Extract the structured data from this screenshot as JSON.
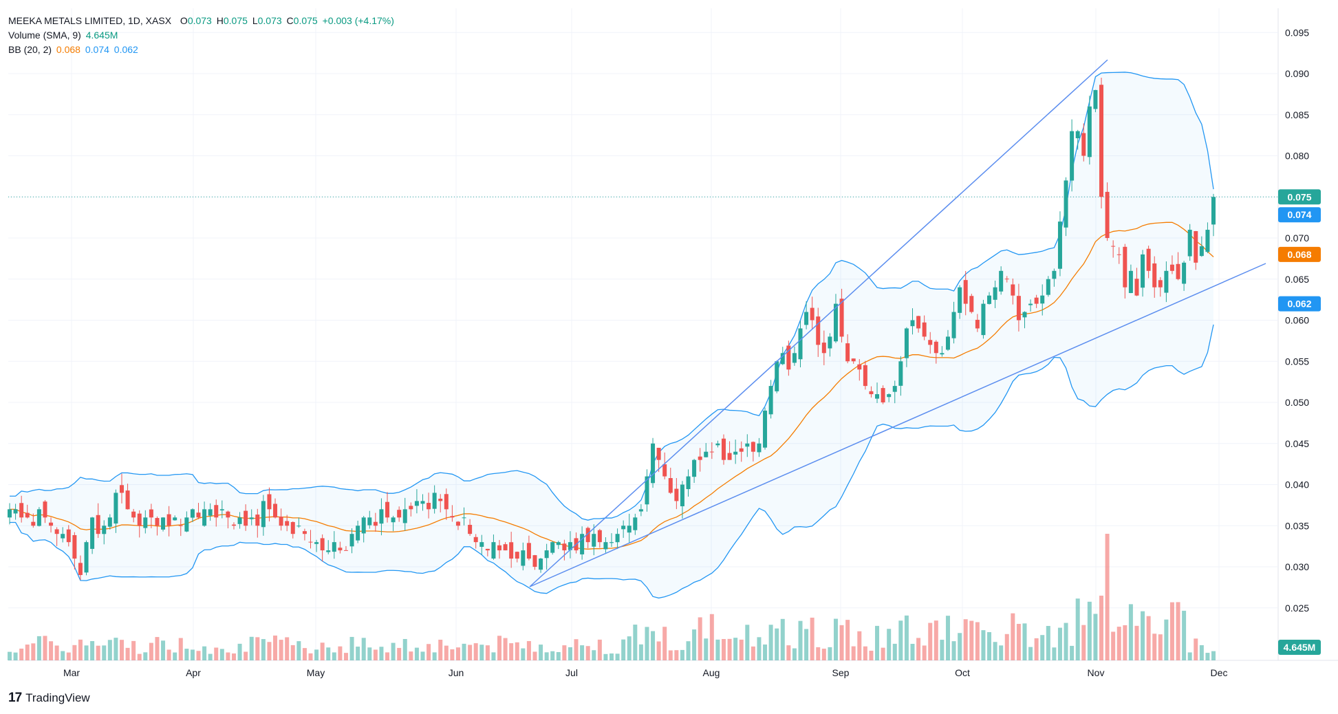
{
  "legend": {
    "symbol": "MEEKA METALS LIMITED, 1D, XASX",
    "o_label": "O",
    "o_val": "0.073",
    "h_label": "H",
    "h_val": "0.075",
    "l_label": "L",
    "l_val": "0.073",
    "c_label": "C",
    "c_val": "0.075",
    "change": "+0.003 (+4.17%)",
    "volume_label": "Volume (SMA, 9)",
    "volume_val": "4.645M",
    "bb_label": "BB (20, 2)",
    "bb_mid": "0.068",
    "bb_upper": "0.074",
    "bb_lower": "0.062"
  },
  "brand": {
    "name": "TradingView",
    "logo": "17"
  },
  "colors": {
    "up": "#26a69a",
    "down": "#ef5350",
    "bb_band": "#2196f3",
    "bb_basis": "#f57c00",
    "trendline": "#5b8def",
    "grid": "#f0f3fa"
  },
  "chart_data": {
    "type": "candlestick",
    "y_ticks": [
      "0.095",
      "0.090",
      "0.085",
      "0.080",
      "0.075",
      "0.070",
      "0.065",
      "0.060",
      "0.055",
      "0.050",
      "0.045",
      "0.040",
      "0.035",
      "0.030",
      "0.025"
    ],
    "x_labels": [
      "Mar",
      "Apr",
      "May",
      "Jun",
      "Jul",
      "Aug",
      "Sep",
      "Oct",
      "Nov",
      "Dec"
    ],
    "price_badges": [
      {
        "label": "0.075",
        "value": 0.075,
        "color": "#26a69a"
      },
      {
        "label": "0.074",
        "value": 0.074,
        "color": "#2196f3"
      },
      {
        "label": "0.068",
        "value": 0.068,
        "color": "#f57c00"
      },
      {
        "label": "0.062",
        "value": 0.062,
        "color": "#2196f3"
      }
    ],
    "volume_badge": "4.645M",
    "series": [
      {
        "name": "Price",
        "note": "approximate daily closes read from chart, Feb–Dec",
        "closes": [
          0.037,
          0.037,
          0.036,
          0.036,
          0.035,
          0.037,
          0.036,
          0.035,
          0.034,
          0.034,
          0.033,
          0.031,
          0.029,
          0.033,
          0.036,
          0.034,
          0.035,
          0.036,
          0.039,
          0.039,
          0.037,
          0.036,
          0.035,
          0.036,
          0.036,
          0.035,
          0.036,
          0.035,
          0.036,
          0.035,
          0.036,
          0.037,
          0.036,
          0.037,
          0.037,
          0.036,
          0.037,
          0.036,
          0.035,
          0.036,
          0.035,
          0.036,
          0.035,
          0.038,
          0.037,
          0.036,
          0.035,
          0.035,
          0.034,
          0.035,
          0.034,
          0.033,
          0.033,
          0.032,
          0.032,
          0.033,
          0.032,
          0.032,
          0.034,
          0.035,
          0.036,
          0.036,
          0.035,
          0.037,
          0.036,
          0.036,
          0.036,
          0.037,
          0.037,
          0.038,
          0.038,
          0.037,
          0.039,
          0.038,
          0.037,
          0.036,
          0.035,
          0.036,
          0.034,
          0.033,
          0.033,
          0.032,
          0.033,
          0.032,
          0.032,
          0.031,
          0.031,
          0.032,
          0.031,
          0.03,
          0.031,
          0.032,
          0.033,
          0.033,
          0.032,
          0.033,
          0.032,
          0.034,
          0.033,
          0.034,
          0.033,
          0.033,
          0.033,
          0.034,
          0.035,
          0.035,
          0.036,
          0.037,
          0.041,
          0.045,
          0.043,
          0.041,
          0.039,
          0.038,
          0.04,
          0.041,
          0.043,
          0.043,
          0.044,
          0.044,
          0.045,
          0.043,
          0.043,
          0.044,
          0.044,
          0.045,
          0.044,
          0.045,
          0.049,
          0.052,
          0.055,
          0.056,
          0.054,
          0.056,
          0.059,
          0.061,
          0.06,
          0.057,
          0.056,
          0.058,
          0.062,
          0.058,
          0.055,
          0.055,
          0.054,
          0.052,
          0.051,
          0.051,
          0.05,
          0.051,
          0.052,
          0.055,
          0.059,
          0.06,
          0.059,
          0.058,
          0.057,
          0.056,
          0.056,
          0.058,
          0.061,
          0.064,
          0.062,
          0.061,
          0.059,
          0.062,
          0.063,
          0.064,
          0.066,
          0.065,
          0.063,
          0.06,
          0.061,
          0.062,
          0.062,
          0.063,
          0.065,
          0.066,
          0.072,
          0.077,
          0.083,
          0.083,
          0.08,
          0.086,
          0.088,
          0.075,
          0.07,
          0.069,
          0.068,
          0.064,
          0.066,
          0.063,
          0.068,
          0.066,
          0.064,
          0.064,
          0.066,
          0.066,
          0.065,
          0.067,
          0.071,
          0.067,
          0.069,
          0.071,
          0.075
        ]
      },
      {
        "name": "Volume"
      },
      {
        "name": "BB Upper"
      },
      {
        "name": "BB Basis"
      },
      {
        "name": "BB Lower"
      }
    ]
  }
}
